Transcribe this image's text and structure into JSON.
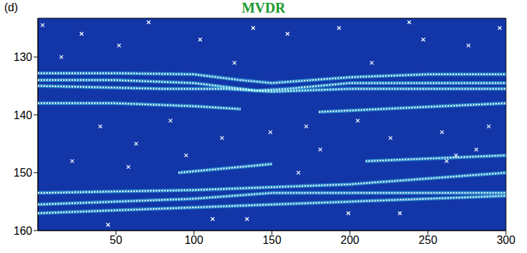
{
  "chart_data": {
    "type": "scatter",
    "title": "MVDR",
    "panel": "(d)",
    "xlim": [
      0,
      300
    ],
    "xticks": [
      50,
      100,
      150,
      200,
      250,
      300
    ],
    "ylim": [
      123.3,
      160
    ],
    "yticks": [
      130,
      140,
      150,
      160
    ],
    "series": [
      {
        "type": "line",
        "color": "#ffffff",
        "line_style": "dotted",
        "x": [
          0,
          50,
          100,
          130,
          150,
          200,
          250,
          300
        ],
        "values": [
          132.8,
          132.8,
          133,
          134,
          134.5,
          133.5,
          133,
          133
        ]
      },
      {
        "type": "line",
        "color": "#ffffff",
        "line_style": "dotted",
        "x": [
          0,
          50,
          100,
          140,
          160,
          200,
          250,
          300
        ],
        "values": [
          134,
          134,
          134.5,
          135.8,
          135.5,
          134.5,
          134.5,
          134.5
        ]
      },
      {
        "type": "line",
        "color": "#ffffff",
        "line_style": "dotted",
        "x": [
          0,
          80,
          120,
          150,
          200,
          300
        ],
        "values": [
          135,
          135.5,
          135.5,
          136,
          135.5,
          135.5
        ]
      },
      {
        "type": "line",
        "color": "#ffffff",
        "line_style": "dotted",
        "x": [
          0,
          50,
          100,
          130
        ],
        "values": [
          138,
          138,
          138.5,
          139
        ]
      },
      {
        "type": "line",
        "color": "#ffffff",
        "line_style": "dotted",
        "x": [
          180,
          220,
          300
        ],
        "values": [
          139.5,
          139,
          138
        ]
      },
      {
        "type": "line",
        "color": "#ffffff",
        "line_style": "dotted",
        "x": [
          90,
          150
        ],
        "values": [
          150,
          148.5
        ]
      },
      {
        "type": "line",
        "color": "#ffffff",
        "line_style": "dotted",
        "x": [
          210,
          300
        ],
        "values": [
          148,
          147
        ]
      },
      {
        "type": "line",
        "color": "#ffffff",
        "line_style": "dotted",
        "x": [
          0,
          100,
          150,
          200,
          250,
          300
        ],
        "values": [
          153.5,
          153,
          152.5,
          152,
          151,
          150
        ]
      },
      {
        "type": "line",
        "color": "#ffffff",
        "line_style": "dotted",
        "x": [
          0,
          100,
          150,
          200,
          300
        ],
        "values": [
          155.5,
          154.5,
          153.5,
          153.5,
          153.5
        ]
      },
      {
        "type": "line",
        "color": "#ffffff",
        "line_style": "dotted",
        "x": [
          0,
          50,
          100,
          150,
          200,
          250,
          300
        ],
        "values": [
          157,
          156.5,
          156,
          155.5,
          155,
          154.5,
          154
        ]
      },
      {
        "type": "scatter",
        "color": "#ffffff",
        "marker": "x",
        "x": [
          3,
          15,
          28,
          40,
          52,
          63,
          71,
          85,
          95,
          104,
          118,
          126,
          138,
          149,
          160,
          172,
          181,
          193,
          205,
          214,
          226,
          238,
          247,
          259,
          268,
          276,
          289,
          296,
          22,
          58,
          112,
          167,
          232,
          281,
          45,
          134,
          199,
          262
        ],
        "values": [
          124.5,
          130,
          126,
          142,
          128,
          145,
          124,
          141,
          147,
          127,
          144,
          131,
          125,
          143,
          126,
          142,
          146,
          125,
          141,
          131,
          144,
          124,
          127,
          143,
          147,
          128,
          142,
          125,
          148,
          149,
          158,
          150,
          157,
          146,
          159,
          158,
          157,
          148
        ]
      }
    ],
    "grid": false
  }
}
